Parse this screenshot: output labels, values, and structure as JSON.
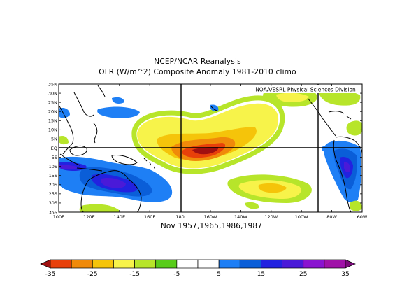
{
  "titles": {
    "line1": "NCEP/NCAR Reanalysis",
    "line2": "OLR (W/m^2) Composite Anomaly 1981-2010 climo",
    "source": "NOAA/ESRL Physical Sciences Division",
    "period": "Nov 1957,1965,1986,1987"
  },
  "map": {
    "lat_labels": [
      "35N",
      "30N",
      "25N",
      "20N",
      "15N",
      "10N",
      "5N",
      "EQ",
      "5S",
      "10S",
      "15S",
      "20S",
      "25S",
      "30S",
      "35S"
    ],
    "lon_labels": [
      "100E",
      "120E",
      "140E",
      "160E",
      "180",
      "160W",
      "140W",
      "120W",
      "100W",
      "80W",
      "60W"
    ]
  },
  "colorbar": {
    "labels": [
      "-35",
      "-25",
      "-15",
      "-5",
      "5",
      "15",
      "25",
      "35"
    ],
    "colors": [
      "#a01010",
      "#e8400a",
      "#f08a0a",
      "#f5c40a",
      "#f7f34a",
      "#b7e52a",
      "#58cc1a",
      "#ffffff",
      "#ffffff",
      "#1e7ff5",
      "#0a5ed8",
      "#2222e0",
      "#4a1ad8",
      "#8a14d0",
      "#a012a8",
      "#7a0a7a"
    ]
  }
}
